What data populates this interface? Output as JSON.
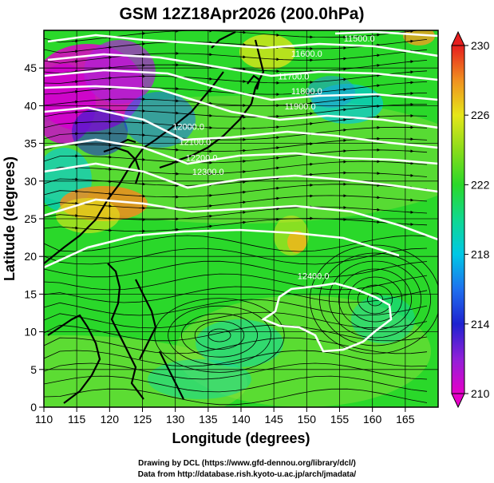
{
  "title": "GSM 12Z18Apr2026 (200.0hPa)",
  "xlabel": "Longitude (degrees)",
  "ylabel": "Latitude  (degrees)",
  "x_ticks": [
    "110",
    "115",
    "120",
    "125",
    "130",
    "135",
    "140",
    "145",
    "150",
    "155",
    "160",
    "165"
  ],
  "y_ticks": [
    "0",
    "5",
    "10",
    "15",
    "20",
    "25",
    "30",
    "35",
    "40",
    "45"
  ],
  "colorbar": {
    "ticks": [
      "230",
      "226",
      "222",
      "218",
      "214",
      "210"
    ],
    "min": 210,
    "max": 230
  },
  "contour_labels": [
    {
      "text": "11500.0",
      "lon": 158,
      "lat": 48.5
    },
    {
      "text": "11600.0",
      "lon": 150,
      "lat": 46.5
    },
    {
      "text": "11700.0",
      "lon": 148,
      "lat": 43.5
    },
    {
      "text": "11800.0",
      "lon": 150,
      "lat": 41.5
    },
    {
      "text": "11900.0",
      "lon": 149,
      "lat": 39.5
    },
    {
      "text": "12000.0",
      "lon": 132,
      "lat": 36.8
    },
    {
      "text": "12100.0",
      "lon": 133,
      "lat": 34.8
    },
    {
      "text": "12200.0",
      "lon": 134,
      "lat": 32.7
    },
    {
      "text": "12300.0",
      "lon": 135,
      "lat": 30.8
    },
    {
      "text": "12400.0",
      "lon": 151,
      "lat": 17.0
    }
  ],
  "credits": {
    "line1": "Drawing by DCL (https://www.gfd-dennou.org/library/dcl/)",
    "line2": "Data from http://database.rish.kyoto-u.ac.jp/arch/jmadata/"
  },
  "chart_data": {
    "type": "heatmap",
    "title": "GSM 12Z18Apr2026 (200.0hPa)",
    "xlabel": "Longitude (degrees)",
    "ylabel": "Latitude  (degrees)",
    "xlim": [
      110,
      170
    ],
    "ylim": [
      0,
      50
    ],
    "color_range": [
      210,
      230
    ],
    "colorbar_ticks": [
      210,
      214,
      218,
      222,
      226,
      230
    ],
    "contour_interval": 100,
    "contour_levels": [
      11500,
      11600,
      11700,
      11800,
      11900,
      12000,
      12100,
      12200,
      12300,
      12400
    ],
    "features": [
      "temperature shading",
      "geopotential height contours",
      "wind streamlines",
      "coastlines",
      "lat/lon grid"
    ]
  },
  "colors": {
    "magenta": "#e000c8",
    "blue": "#1e22d0",
    "cyan": "#00c8e6",
    "green": "#2ad82a",
    "yellow": "#e6e61a",
    "orange": "#f08c1e",
    "red": "#e61e1e"
  }
}
